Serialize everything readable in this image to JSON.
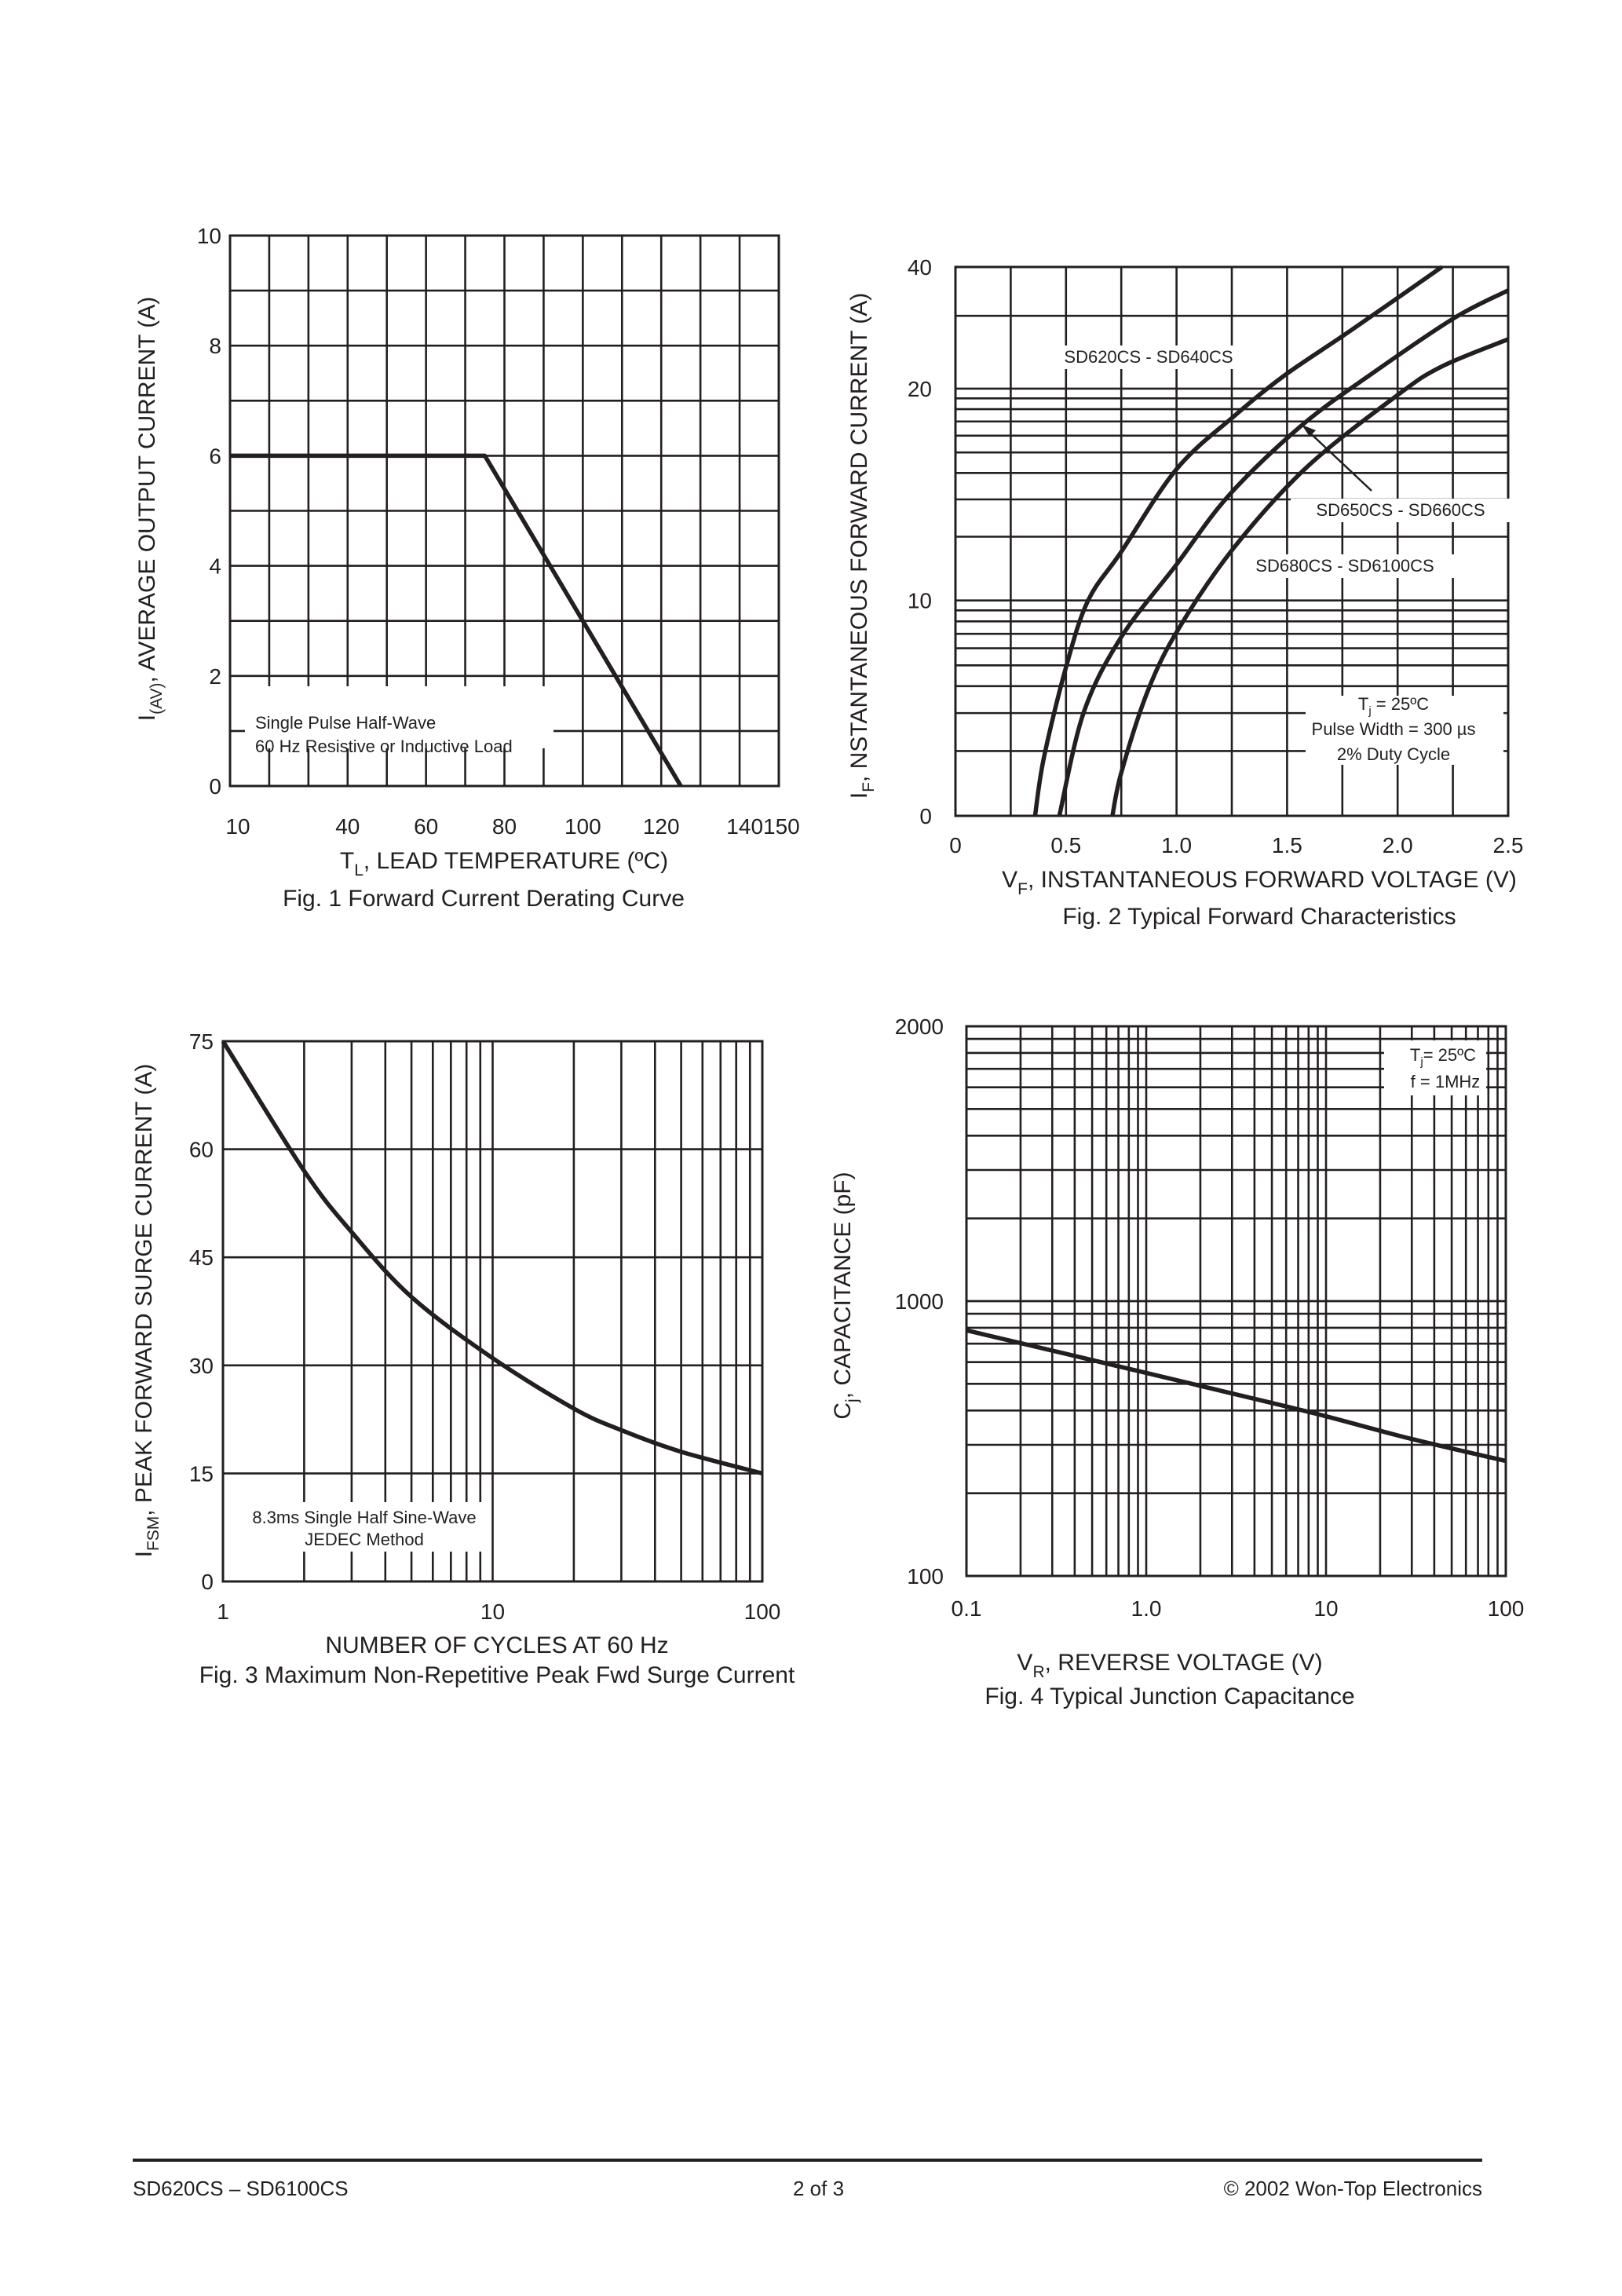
{
  "colors": {
    "ink": "#231f20",
    "background": "#ffffff"
  },
  "chart_data": [
    {
      "type": "line",
      "title": "Fig. 1  Forward Current Derating Curve",
      "xlabel": {
        "main": "T",
        "sub": "L",
        "rest": ", LEAD TEMPERATURE (ºC)"
      },
      "ylabel": {
        "main": "I",
        "sub": "(AV)",
        "rest": ", AVERAGE OUTPUT CURRENT (A)"
      },
      "xlim": [
        10,
        150
      ],
      "ylim": [
        0,
        10
      ],
      "x_tick_labels": [
        "10",
        "40",
        "60",
        "80",
        "100",
        "120",
        "140150"
      ],
      "y_tick_labels": [
        "0",
        "2",
        "4",
        "6",
        "8",
        "10"
      ],
      "y_ticks": [
        0,
        2,
        4,
        6,
        8,
        10
      ],
      "grid": true,
      "annotation": [
        "Single Pulse Half-Wave",
        "60 Hz Resistive or Inductive Load"
      ],
      "series": [
        {
          "x": [
            10,
            75,
            125
          ],
          "y": [
            6,
            6,
            0
          ]
        }
      ]
    },
    {
      "type": "line",
      "title": "Fig. 2  Typical Forward Characteristics",
      "xlabel": {
        "main": "V",
        "sub": "F",
        "rest": ", INSTANTANEOUS FORWARD VOLTAGE (V)"
      },
      "ylabel": {
        "main": "I",
        "sub": "F",
        "rest": ", NSTANTANEOUS FORWARD CURRENT (A)"
      },
      "xlim": [
        0,
        2.5
      ],
      "ylim": [
        0,
        40
      ],
      "x_tick_labels": [
        "0",
        "0.5",
        "1.0",
        "1.5",
        "2.0",
        "2.5"
      ],
      "x_ticks": [
        0,
        0.5,
        1.0,
        1.5,
        2.0,
        2.5
      ],
      "y_tick_labels": [
        "0",
        "10",
        "20",
        "40"
      ],
      "y_ticks": [
        0,
        10,
        20,
        40
      ],
      "grid": true,
      "annotation": [
        "T",
        "j",
        " =  25ºC",
        "Pulse Width =  300 µs",
        "2% Duty Cycle"
      ],
      "series": [
        {
          "name": "SD620CS - SD640CS",
          "x": [
            0.36,
            0.4,
            0.5,
            0.6,
            0.75,
            1.0,
            1.26,
            1.49,
            1.79,
            2.2
          ],
          "y": [
            0,
            2.7,
            6.9,
            10,
            12.3,
            16.2,
            18.7,
            21.6,
            27.9,
            40
          ]
        },
        {
          "name": "SD650CS - SD660CS",
          "x": [
            0.47,
            0.58,
            0.75,
            1.0,
            1.24,
            1.57,
            1.9,
            2.26,
            2.5
          ],
          "y": [
            0,
            4.8,
            8.3,
            11.7,
            15,
            18.3,
            22.1,
            30,
            35
          ]
        },
        {
          "name": "SD680CS - SD6100CS",
          "x": [
            0.71,
            0.75,
            0.87,
            1.01,
            1.26,
            1.59,
            2.0,
            2.2,
            2.5
          ],
          "y": [
            0,
            2,
            5.8,
            8.7,
            12.5,
            16.3,
            19.7,
            22.7,
            26.5
          ]
        }
      ]
    },
    {
      "type": "line",
      "title": "Fig. 3  Maximum Non-Repetitive Peak Fwd Surge Current",
      "xlabel": {
        "main": "NUMBER OF CYCLES AT 60 Hz",
        "sub": "",
        "rest": ""
      },
      "ylabel": {
        "main": "I",
        "sub": "FSM",
        "rest": ", PEAK FORWARD SURGE CURRENT (A)"
      },
      "xscale": "log",
      "xlim": [
        1,
        100
      ],
      "ylim": [
        0,
        75
      ],
      "x_tick_labels": [
        "1",
        "10",
        "100"
      ],
      "x_ticks": [
        1,
        10,
        100
      ],
      "y_tick_labels": [
        "0",
        "15",
        "30",
        "45",
        "60",
        "75"
      ],
      "y_ticks": [
        0,
        15,
        30,
        45,
        60,
        75
      ],
      "grid": true,
      "annotation": [
        "8.3ms Single Half Sine-Wave",
        "JEDEC Method"
      ],
      "series": [
        {
          "x": [
            1,
            2,
            3,
            5,
            10,
            20,
            30,
            50,
            100
          ],
          "y": [
            75,
            57,
            48.5,
            39.5,
            31,
            24,
            21,
            18,
            15
          ]
        }
      ]
    },
    {
      "type": "line",
      "title": "Fig. 4  Typical Junction Capacitance",
      "xlabel": {
        "main": "V",
        "sub": "R",
        "rest": ", REVERSE VOLTAGE (V)"
      },
      "ylabel": {
        "main": "C",
        "sub": "j",
        "rest": ", CAPACITANCE (pF)"
      },
      "xscale": "log",
      "yscale": "log",
      "xlim": [
        0.1,
        100
      ],
      "ylim": [
        100,
        2000
      ],
      "x_tick_labels": [
        "0.1",
        "1.0",
        "10",
        "100"
      ],
      "x_ticks": [
        0.1,
        1,
        10,
        100
      ],
      "y_tick_labels": [
        "100",
        "1000",
        "2000"
      ],
      "y_ticks": [
        100,
        1000,
        2000
      ],
      "grid": true,
      "annotation": [
        "T",
        "j",
        "=  25ºC",
        "f =  1MHz"
      ],
      "series": [
        {
          "x": [
            0.1,
            1,
            4.5,
            10,
            30,
            100
          ],
          "y": [
            783,
            548,
            433,
            381,
            315,
            262
          ]
        }
      ]
    }
  ],
  "footer": {
    "left": "SD620CS – SD6100CS",
    "center": "2 of 3",
    "right": "© 2002 Won-Top Electronics"
  }
}
